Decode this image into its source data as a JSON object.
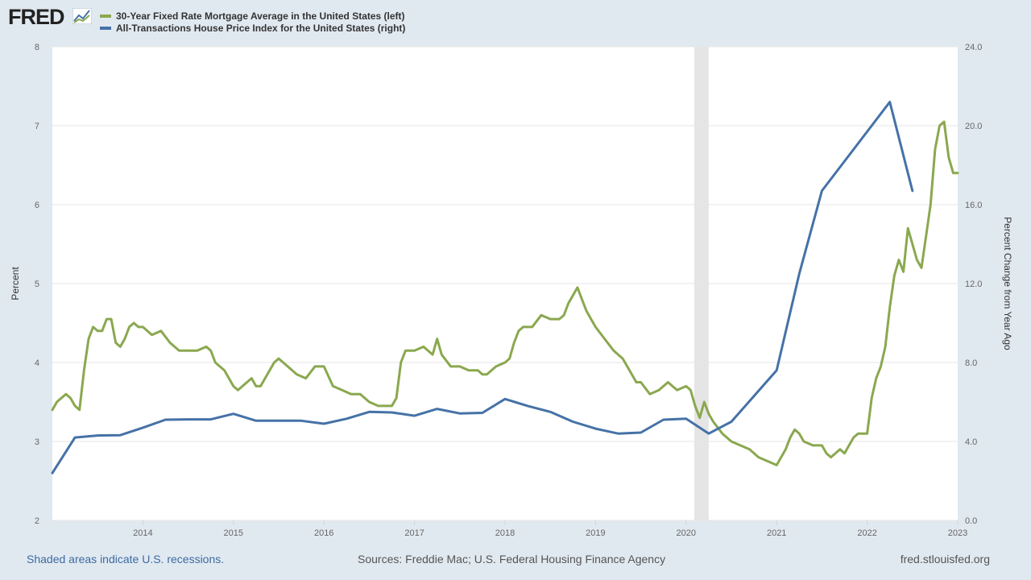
{
  "brand": {
    "logo_text": "FRED"
  },
  "colors": {
    "series_left": "#8aa84f",
    "series_right": "#4572a7",
    "recession": "#e5e5e5",
    "grid": "#e6e6e6"
  },
  "footer": {
    "recession_note": "Shaded areas indicate U.S. recessions.",
    "sources": "Sources: Freddie Mac; U.S. Federal Housing Finance Agency",
    "url": "fred.stlouisfed.org"
  },
  "chart_data": {
    "type": "line",
    "title": "",
    "legend_position": "top-left",
    "grid": true,
    "x_axis": {
      "range": [
        2013.0,
        2023.0
      ],
      "ticks": [
        2014,
        2015,
        2016,
        2017,
        2018,
        2019,
        2020,
        2021,
        2022,
        2023
      ]
    },
    "y_left": {
      "label": "Percent",
      "range": [
        2,
        8
      ],
      "ticks": [
        2,
        3,
        4,
        5,
        6,
        7,
        8
      ]
    },
    "y_right": {
      "label": "Percent Change from Year Ago",
      "range": [
        0,
        24
      ],
      "ticks": [
        "0.0",
        "4.0",
        "8.0",
        "12.0",
        "16.0",
        "20.0",
        "24.0"
      ]
    },
    "recessions": [
      {
        "start": 2020.09,
        "end": 2020.25
      }
    ],
    "series": [
      {
        "name": "30-Year Fixed Rate Mortgage Average in the United States (left)",
        "axis": "left",
        "x": [
          2013.0,
          2013.05,
          2013.1,
          2013.15,
          2013.2,
          2013.25,
          2013.3,
          2013.35,
          2013.4,
          2013.45,
          2013.5,
          2013.55,
          2013.6,
          2013.65,
          2013.7,
          2013.75,
          2013.8,
          2013.85,
          2013.9,
          2013.95,
          2014.0,
          2014.1,
          2014.2,
          2014.3,
          2014.4,
          2014.5,
          2014.6,
          2014.7,
          2014.75,
          2014.8,
          2014.85,
          2014.9,
          2015.0,
          2015.05,
          2015.1,
          2015.2,
          2015.25,
          2015.3,
          2015.4,
          2015.45,
          2015.5,
          2015.6,
          2015.7,
          2015.8,
          2015.9,
          2016.0,
          2016.1,
          2016.2,
          2016.3,
          2016.4,
          2016.5,
          2016.6,
          2016.7,
          2016.75,
          2016.8,
          2016.85,
          2016.9,
          2017.0,
          2017.1,
          2017.2,
          2017.25,
          2017.3,
          2017.4,
          2017.5,
          2017.6,
          2017.7,
          2017.75,
          2017.8,
          2017.9,
          2018.0,
          2018.05,
          2018.1,
          2018.15,
          2018.2,
          2018.3,
          2018.4,
          2018.5,
          2018.6,
          2018.65,
          2018.7,
          2018.75,
          2018.8,
          2018.85,
          2018.9,
          2018.95,
          2019.0,
          2019.1,
          2019.2,
          2019.25,
          2019.3,
          2019.4,
          2019.45,
          2019.5,
          2019.6,
          2019.7,
          2019.8,
          2019.9,
          2020.0,
          2020.05,
          2020.1,
          2020.15,
          2020.2,
          2020.25,
          2020.3,
          2020.4,
          2020.5,
          2020.6,
          2020.7,
          2020.8,
          2020.9,
          2021.0,
          2021.05,
          2021.1,
          2021.15,
          2021.2,
          2021.25,
          2021.3,
          2021.4,
          2021.5,
          2021.55,
          2021.6,
          2021.7,
          2021.75,
          2021.8,
          2021.85,
          2021.9,
          2022.0,
          2022.05,
          2022.1,
          2022.15,
          2022.2,
          2022.25,
          2022.3,
          2022.35,
          2022.4,
          2022.45,
          2022.5,
          2022.55,
          2022.6,
          2022.65,
          2022.7,
          2022.75,
          2022.8,
          2022.85,
          2022.9,
          2022.95,
          2023.0
        ],
        "values": [
          3.4,
          3.5,
          3.55,
          3.6,
          3.55,
          3.45,
          3.4,
          3.9,
          4.3,
          4.45,
          4.4,
          4.4,
          4.55,
          4.55,
          4.25,
          4.2,
          4.3,
          4.45,
          4.5,
          4.45,
          4.45,
          4.35,
          4.4,
          4.25,
          4.15,
          4.15,
          4.15,
          4.2,
          4.15,
          4.0,
          3.95,
          3.9,
          3.7,
          3.65,
          3.7,
          3.8,
          3.7,
          3.7,
          3.9,
          4.0,
          4.05,
          3.95,
          3.85,
          3.8,
          3.95,
          3.95,
          3.7,
          3.65,
          3.6,
          3.6,
          3.5,
          3.45,
          3.45,
          3.45,
          3.55,
          4.0,
          4.15,
          4.15,
          4.2,
          4.1,
          4.3,
          4.1,
          3.95,
          3.95,
          3.9,
          3.9,
          3.85,
          3.85,
          3.95,
          4.0,
          4.05,
          4.25,
          4.4,
          4.45,
          4.45,
          4.6,
          4.55,
          4.55,
          4.6,
          4.75,
          4.85,
          4.95,
          4.8,
          4.65,
          4.55,
          4.45,
          4.3,
          4.15,
          4.1,
          4.05,
          3.85,
          3.75,
          3.75,
          3.6,
          3.65,
          3.75,
          3.65,
          3.7,
          3.65,
          3.45,
          3.3,
          3.5,
          3.35,
          3.25,
          3.1,
          3.0,
          2.95,
          2.9,
          2.8,
          2.75,
          2.7,
          2.8,
          2.9,
          3.05,
          3.15,
          3.1,
          3.0,
          2.95,
          2.95,
          2.85,
          2.8,
          2.9,
          2.85,
          2.95,
          3.05,
          3.1,
          3.1,
          3.55,
          3.8,
          3.95,
          4.2,
          4.7,
          5.1,
          5.3,
          5.15,
          5.7,
          5.5,
          5.3,
          5.2,
          5.6,
          6.0,
          6.7,
          7.0,
          7.05,
          6.6,
          6.4,
          6.4
        ]
      },
      {
        "name": "All-Transactions House Price Index for the United States (right)",
        "axis": "right",
        "x": [
          2013.0,
          2013.25,
          2013.5,
          2013.75,
          2014.0,
          2014.25,
          2014.5,
          2014.75,
          2015.0,
          2015.25,
          2015.5,
          2015.75,
          2016.0,
          2016.25,
          2016.5,
          2016.75,
          2017.0,
          2017.25,
          2017.5,
          2017.75,
          2018.0,
          2018.25,
          2018.5,
          2018.75,
          2019.0,
          2019.25,
          2019.5,
          2019.75,
          2020.0,
          2020.25,
          2020.5,
          2020.75,
          2021.0,
          2021.25,
          2021.5,
          2021.75,
          2022.0,
          2022.25,
          2022.5
        ],
        "values": [
          2.4,
          4.2,
          4.3,
          4.32,
          4.7,
          5.1,
          5.12,
          5.12,
          5.4,
          5.05,
          5.05,
          5.05,
          4.9,
          5.15,
          5.5,
          5.47,
          5.3,
          5.65,
          5.42,
          5.45,
          6.15,
          5.8,
          5.5,
          5.0,
          4.65,
          4.4,
          4.45,
          5.1,
          5.15,
          4.4,
          5.0,
          6.3,
          7.6,
          12.5,
          16.7,
          18.2,
          19.7,
          21.2,
          16.7
        ]
      }
    ]
  }
}
